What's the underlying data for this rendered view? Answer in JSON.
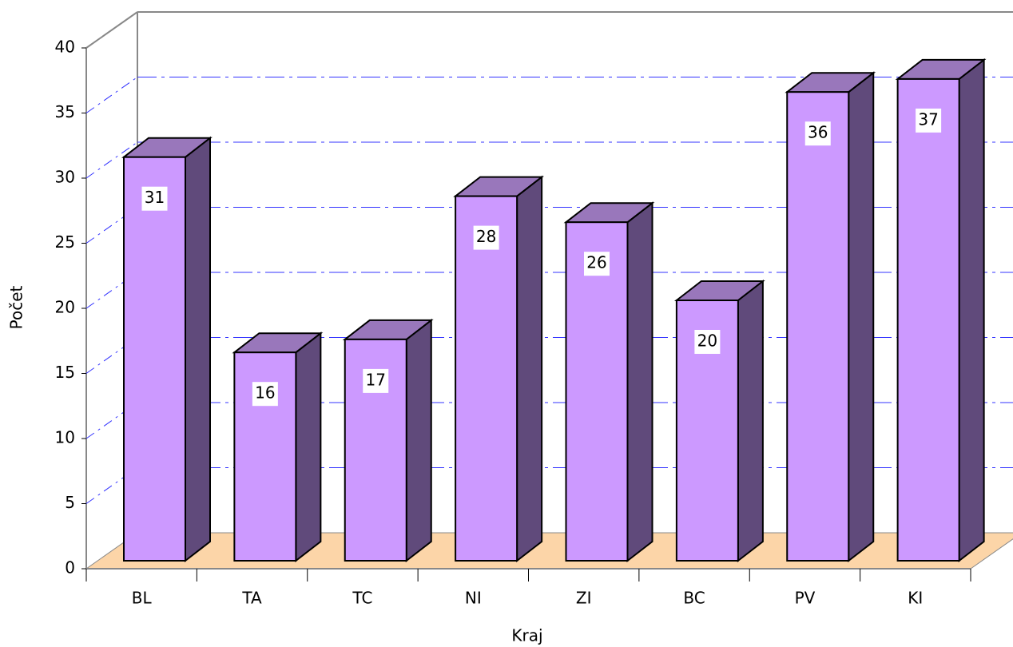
{
  "chart_data": {
    "type": "bar3d",
    "xlabel": "Kraj",
    "ylabel": "Počet",
    "categories": [
      "BL",
      "TA",
      "TC",
      "NI",
      "ZI",
      "BC",
      "PV",
      "KI"
    ],
    "values": [
      31,
      16,
      17,
      28,
      26,
      20,
      36,
      37
    ],
    "color": "#cc99ff",
    "side_color": "#604a7b",
    "top_color": "#9977bb",
    "grid_color": "#3333ff",
    "floor_color": "#fcd5a8",
    "ylim": [
      0,
      40
    ],
    "yticks": [
      0,
      5,
      10,
      15,
      20,
      25,
      30,
      35,
      40
    ],
    "grid": true
  }
}
